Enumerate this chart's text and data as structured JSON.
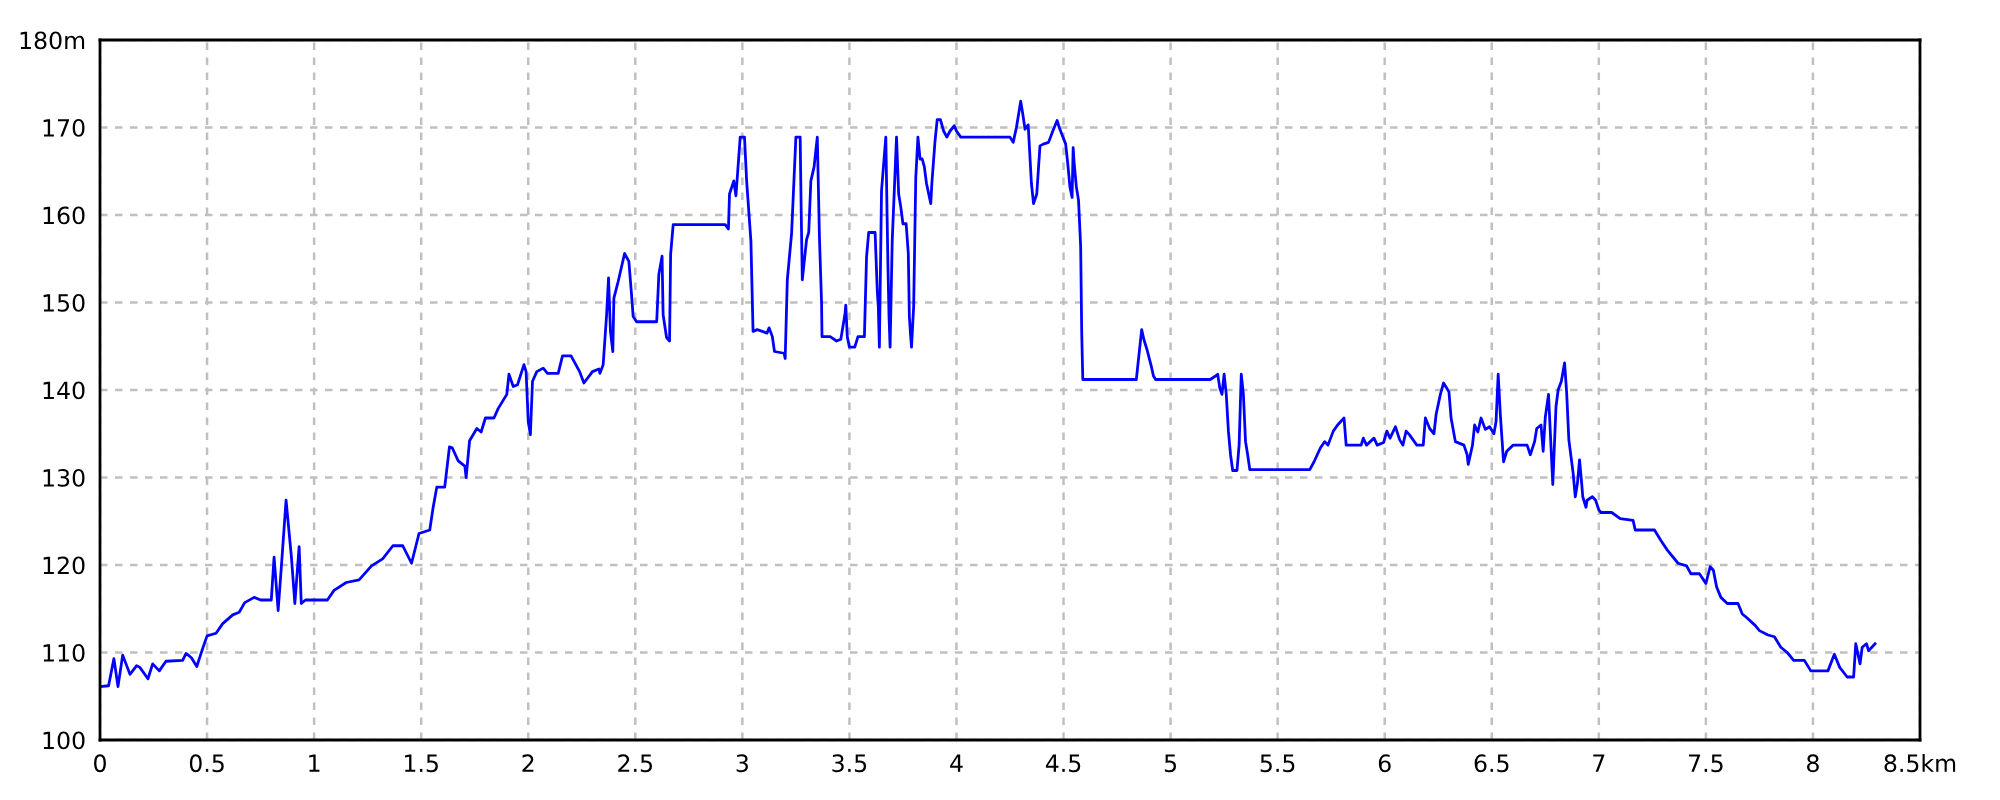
{
  "chart_data": {
    "type": "line",
    "x": [
      0,
      0.04,
      0.065,
      0.084,
      0.106,
      0.14,
      0.171,
      0.186,
      0.224,
      0.246,
      0.277,
      0.308,
      0.386,
      0.402,
      0.427,
      0.452,
      0.48,
      0.5,
      0.542,
      0.573,
      0.62,
      0.65,
      0.676,
      0.72,
      0.75,
      0.8,
      0.813,
      0.832,
      0.847,
      0.869,
      0.894,
      0.91,
      0.93,
      0.94,
      0.96,
      1.062,
      1.093,
      1.15,
      1.21,
      1.268,
      1.32,
      1.368,
      1.414,
      1.455,
      1.49,
      1.54,
      1.556,
      1.573,
      1.61,
      1.632,
      1.645,
      1.673,
      1.704,
      1.71,
      1.726,
      1.76,
      1.78,
      1.8,
      1.84,
      1.86,
      1.9,
      1.91,
      1.93,
      1.95,
      1.98,
      1.99,
      2.0,
      2.01,
      2.02,
      2.04,
      2.07,
      2.09,
      2.14,
      2.16,
      2.2,
      2.24,
      2.26,
      2.3,
      2.33,
      2.335,
      2.35,
      2.366,
      2.375,
      2.384,
      2.395,
      2.4,
      2.42,
      2.435,
      2.45,
      2.47,
      2.485,
      2.49,
      2.506,
      2.6,
      2.61,
      2.625,
      2.63,
      2.646,
      2.66,
      2.665,
      2.677,
      2.92,
      2.935,
      2.94,
      2.96,
      2.97,
      2.99,
      3.01,
      3.02,
      3.04,
      3.05,
      3.07,
      3.115,
      3.125,
      3.14,
      3.15,
      3.195,
      3.2,
      3.21,
      3.23,
      3.25,
      3.27,
      3.275,
      3.28,
      3.3,
      3.31,
      3.32,
      3.335,
      3.35,
      3.36,
      3.37,
      3.372,
      3.41,
      3.44,
      3.46,
      3.48,
      3.483,
      3.49,
      3.5,
      3.525,
      3.54,
      3.57,
      3.58,
      3.59,
      3.62,
      3.63,
      3.635,
      3.64,
      3.65,
      3.67,
      3.68,
      3.685,
      3.69,
      3.7,
      3.72,
      3.73,
      3.74,
      3.75,
      3.765,
      3.775,
      3.78,
      3.785,
      3.79,
      3.8,
      3.81,
      3.82,
      3.83,
      3.84,
      3.85,
      3.86,
      3.88,
      3.885,
      3.9,
      3.91,
      3.925,
      3.94,
      3.955,
      3.97,
      3.99,
      4.0,
      4.02,
      4.25,
      4.265,
      4.28,
      4.3,
      4.31,
      4.32,
      4.335,
      4.35,
      4.36,
      4.375,
      4.39,
      4.405,
      4.43,
      4.45,
      4.47,
      4.48,
      4.51,
      4.52,
      4.53,
      4.54,
      4.545,
      4.55,
      4.56,
      4.57,
      4.58,
      4.585,
      4.59,
      4.84,
      4.85,
      4.865,
      4.875,
      4.89,
      4.91,
      4.92,
      4.93,
      5.185,
      5.21,
      5.22,
      5.23,
      5.24,
      5.25,
      5.26,
      5.27,
      5.28,
      5.29,
      5.31,
      5.32,
      5.33,
      5.34,
      5.35,
      5.36,
      5.37,
      5.65,
      5.67,
      5.7,
      5.72,
      5.735,
      5.76,
      5.78,
      5.81,
      5.82,
      5.89,
      5.9,
      5.915,
      5.95,
      5.965,
      5.995,
      6.01,
      6.025,
      6.05,
      6.07,
      6.085,
      6.1,
      6.115,
      6.15,
      6.18,
      6.19,
      6.21,
      6.23,
      6.24,
      6.26,
      6.275,
      6.3,
      6.31,
      6.33,
      6.37,
      6.385,
      6.39,
      6.41,
      6.42,
      6.435,
      6.45,
      6.47,
      6.49,
      6.51,
      6.52,
      6.53,
      6.54,
      6.555,
      6.57,
      6.6,
      6.665,
      6.68,
      6.7,
      6.71,
      6.73,
      6.74,
      6.75,
      6.765,
      6.78,
      6.785,
      6.8,
      6.81,
      6.825,
      6.84,
      6.85,
      6.86,
      6.88,
      6.89,
      6.9,
      6.91,
      6.92,
      6.925,
      6.94,
      6.945,
      6.97,
      6.985,
      7.0,
      7.01,
      7.06,
      7.1,
      7.16,
      7.17,
      7.26,
      7.29,
      7.32,
      7.37,
      7.41,
      7.43,
      7.47,
      7.5,
      7.52,
      7.535,
      7.55,
      7.57,
      7.6,
      7.65,
      7.67,
      7.69,
      7.73,
      7.75,
      7.79,
      7.82,
      7.85,
      7.88,
      7.91,
      7.96,
      7.99,
      8.07,
      8.1,
      8.125,
      8.16,
      8.19,
      8.2,
      8.22,
      8.23,
      8.25,
      8.26,
      8.29
    ],
    "series": [
      {
        "color": "#0000ff",
        "values": [
          106.1,
          106.2,
          109.3,
          106.1,
          109.7,
          107.5,
          108.5,
          108.3,
          107.0,
          108.7,
          107.9,
          109.0,
          109.1,
          109.9,
          109.4,
          108.4,
          110.5,
          111.9,
          112.2,
          113.3,
          114.3,
          114.6,
          115.7,
          116.3,
          116.0,
          116.0,
          120.9,
          114.8,
          119.8,
          127.4,
          120.9,
          115.6,
          122.1,
          115.6,
          116.0,
          116.0,
          117.1,
          118.0,
          118.3,
          119.9,
          120.7,
          122.2,
          122.2,
          120.2,
          123.6,
          124.0,
          126.6,
          128.9,
          128.9,
          133.5,
          133.4,
          131.9,
          131.3,
          130.0,
          134.2,
          135.6,
          135.2,
          136.8,
          136.8,
          137.9,
          139.5,
          141.8,
          140.4,
          140.6,
          142.9,
          142.1,
          136.4,
          134.9,
          141.0,
          142.1,
          142.5,
          141.9,
          141.9,
          143.9,
          143.9,
          142.1,
          140.8,
          142.1,
          142.4,
          141.9,
          142.9,
          148.6,
          152.8,
          146.7,
          144.4,
          150.5,
          152.4,
          154.0,
          155.6,
          154.7,
          150.1,
          148.4,
          147.8,
          147.8,
          153.2,
          155.3,
          148.6,
          146.0,
          145.6,
          155.5,
          158.9,
          158.9,
          158.4,
          162.4,
          163.9,
          162.2,
          168.9,
          168.9,
          163.9,
          157.0,
          146.7,
          146.9,
          146.5,
          147.1,
          146.1,
          144.4,
          144.2,
          143.6,
          152.6,
          157.9,
          168.9,
          168.9,
          160.2,
          152.6,
          157.2,
          158.0,
          163.9,
          165.5,
          168.9,
          157.5,
          149.9,
          146.1,
          146.1,
          145.6,
          145.8,
          148.8,
          149.7,
          146.1,
          144.9,
          144.9,
          146.1,
          146.1,
          155.2,
          158.0,
          158.0,
          151.4,
          149.5,
          144.9,
          162.8,
          168.9,
          154.1,
          148.4,
          144.9,
          157.1,
          168.9,
          162.4,
          160.9,
          159.0,
          159.0,
          155.6,
          148.4,
          146.5,
          144.9,
          149.5,
          164.3,
          168.9,
          166.4,
          166.4,
          165.5,
          163.6,
          161.3,
          163.6,
          168.5,
          170.9,
          170.9,
          169.6,
          168.9,
          169.6,
          170.2,
          169.6,
          168.9,
          168.9,
          168.3,
          170.0,
          173.0,
          171.5,
          169.8,
          170.3,
          163.6,
          161.3,
          162.4,
          167.9,
          168.1,
          168.3,
          169.6,
          170.8,
          170.0,
          168.1,
          165.8,
          163.2,
          162.0,
          167.7,
          165.8,
          163.2,
          161.7,
          156.4,
          146.5,
          141.2,
          141.2,
          143.5,
          146.9,
          145.8,
          144.6,
          142.7,
          141.6,
          141.2,
          141.2,
          141.6,
          141.8,
          140.2,
          139.5,
          141.8,
          139.5,
          135.3,
          132.6,
          130.8,
          130.8,
          133.7,
          141.8,
          139.5,
          134.1,
          132.6,
          130.9,
          130.9,
          131.8,
          133.4,
          134.1,
          133.7,
          135.3,
          136.0,
          136.8,
          133.7,
          133.7,
          134.5,
          133.7,
          134.5,
          133.7,
          134.0,
          135.3,
          134.5,
          135.8,
          134.3,
          133.7,
          135.3,
          134.9,
          133.7,
          133.7,
          136.8,
          135.6,
          135.0,
          137.2,
          139.5,
          140.8,
          139.8,
          136.8,
          134.1,
          133.7,
          132.6,
          131.5,
          133.7,
          136.0,
          135.2,
          136.8,
          135.5,
          135.8,
          135.0,
          136.4,
          141.8,
          137.2,
          131.8,
          133.0,
          133.7,
          133.7,
          132.6,
          134.1,
          135.6,
          136.0,
          133.0,
          136.9,
          139.5,
          131.8,
          129.2,
          138.1,
          140.0,
          141.0,
          143.1,
          139.6,
          134.3,
          130.5,
          127.8,
          129.3,
          132.0,
          129.3,
          127.8,
          126.6,
          127.4,
          127.8,
          127.4,
          126.3,
          126.0,
          126.0,
          125.3,
          125.1,
          124.0,
          124.0,
          122.8,
          121.7,
          120.2,
          119.9,
          119.0,
          119.0,
          117.9,
          119.8,
          119.4,
          117.5,
          116.3,
          115.6,
          115.6,
          114.4,
          114.0,
          113.1,
          112.5,
          112.0,
          111.8,
          110.6,
          110.0,
          109.1,
          109.1,
          107.9,
          107.9,
          109.8,
          108.3,
          107.2,
          107.2,
          111.0,
          108.7,
          110.6,
          111.0,
          110.2,
          111.0
        ]
      }
    ],
    "xlim": [
      0,
      8.5
    ],
    "ylim": [
      100,
      180
    ],
    "xticks": [
      0,
      0.5,
      1,
      1.5,
      2,
      2.5,
      3,
      3.5,
      4,
      4.5,
      5,
      5.5,
      6,
      6.5,
      7,
      7.5,
      8,
      {
        "value": 8.5,
        "label": "8.5km"
      }
    ],
    "yticks": [
      100,
      110,
      120,
      130,
      140,
      150,
      160,
      170,
      {
        "value": 180,
        "label": "180m"
      }
    ],
    "grid": true,
    "line_style": "solid"
  }
}
